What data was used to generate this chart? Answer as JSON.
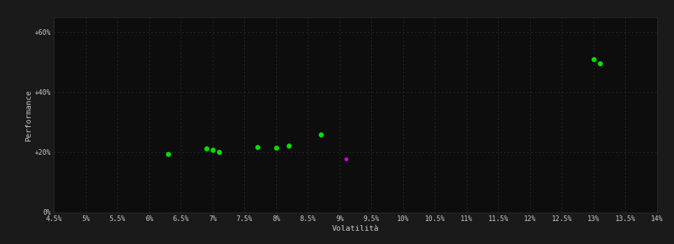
{
  "background_color": "#1a1a1a",
  "plot_bg_color": "#0d0d0d",
  "grid_color": "#303030",
  "text_color": "#cccccc",
  "xlabel": "Volatilità",
  "ylabel": "Performance",
  "xlim": [
    0.045,
    0.14
  ],
  "ylim": [
    0.0,
    0.65
  ],
  "xtick_labels": [
    "4.5%",
    "5%",
    "5.5%",
    "6%",
    "6.5%",
    "7%",
    "7.5%",
    "8%",
    "8.5%",
    "9%",
    "9.5%",
    "10%",
    "10.5%",
    "11%",
    "11.5%",
    "12%",
    "12.5%",
    "13%",
    "13.5%",
    "14%"
  ],
  "xtick_values": [
    0.045,
    0.05,
    0.055,
    0.06,
    0.065,
    0.07,
    0.075,
    0.08,
    0.085,
    0.09,
    0.095,
    0.1,
    0.105,
    0.11,
    0.115,
    0.12,
    0.125,
    0.13,
    0.135,
    0.14
  ],
  "ytick_labels": [
    "0%",
    "+20%",
    "+40%",
    "+60%"
  ],
  "ytick_values": [
    0.0,
    0.2,
    0.4,
    0.6
  ],
  "green_points": [
    [
      0.063,
      0.193
    ],
    [
      0.069,
      0.213
    ],
    [
      0.07,
      0.208
    ],
    [
      0.071,
      0.2
    ],
    [
      0.077,
      0.218
    ],
    [
      0.08,
      0.214
    ],
    [
      0.082,
      0.222
    ],
    [
      0.087,
      0.258
    ],
    [
      0.13,
      0.51
    ],
    [
      0.131,
      0.495
    ]
  ],
  "magenta_points": [
    [
      0.091,
      0.177
    ]
  ],
  "green_color": "#00dd00",
  "magenta_color": "#cc00cc",
  "marker_size": 28
}
